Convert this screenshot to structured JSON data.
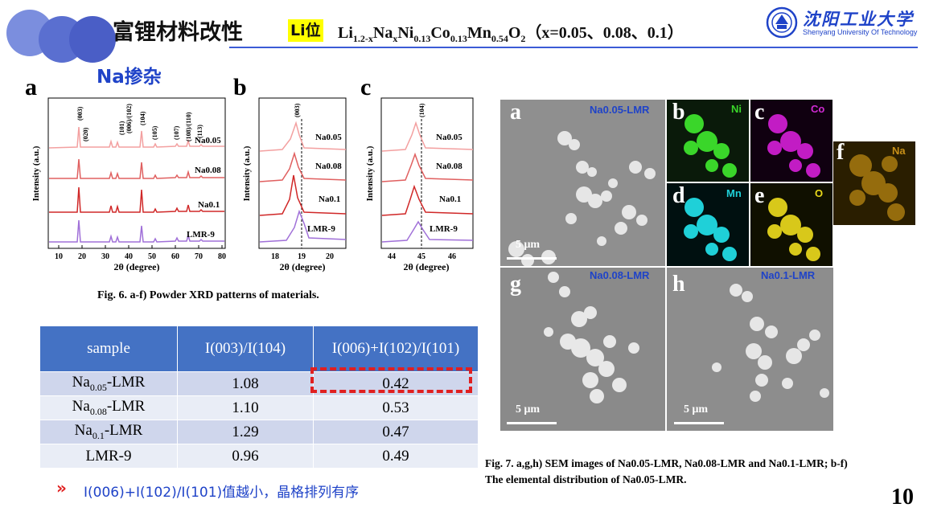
{
  "header": {
    "title_cn": "富锂材料改性",
    "li_badge": "Li位",
    "formula_parts": [
      "Li",
      "1.2-x",
      "Na",
      "x",
      "Ni",
      "0.13",
      "Co",
      "0.13",
      "Mn",
      "0.54",
      "O",
      "2"
    ],
    "formula_suffix": "（x=0.05、0.08、0.1）",
    "university_cn": "沈阳工业大学",
    "university_en": "Shenyang University Of Technology"
  },
  "section": {
    "label": "Na掺杂"
  },
  "xrd": {
    "panel_a": "a",
    "panel_b": "b",
    "panel_c": "c",
    "ylabel": "Intensity (a.u.)",
    "xlabel": "2θ (degree)",
    "a_ticks": [
      "10",
      "20",
      "30",
      "40",
      "50",
      "60",
      "70",
      "80"
    ],
    "b_ticks": [
      "18",
      "19",
      "20"
    ],
    "c_ticks": [
      "44",
      "45",
      "46"
    ],
    "peaks": [
      "(003)",
      "(020)",
      "(101)",
      "(006)/(102)",
      "(104)",
      "(105)",
      "(107)",
      "(108)/(110)",
      "(113)"
    ],
    "peak_b": "(003)",
    "peak_c": "(104)",
    "curve_labels": [
      "Na0.05",
      "Na0.08",
      "Na0.1",
      "LMR-9"
    ],
    "caption": "Fig. 6. a-f) Powder XRD patterns of materials."
  },
  "table": {
    "headers": [
      "sample",
      "I(003)/I(104)",
      "I(006)+I(102)/I(101)"
    ],
    "rows": [
      {
        "sample_base": "Na",
        "sample_sub": "0.05",
        "sample_suffix": "-LMR",
        "i1": "1.08",
        "i2": "0.42"
      },
      {
        "sample_base": "Na",
        "sample_sub": "0.08",
        "sample_suffix": "-LMR",
        "i1": "1.10",
        "i2": "0.53"
      },
      {
        "sample_base": "Na",
        "sample_sub": "0.1",
        "sample_suffix": "-LMR",
        "i1": "1.29",
        "i2": "0.47"
      },
      {
        "sample_base": "LMR-9",
        "sample_sub": "",
        "sample_suffix": "",
        "i1": "0.96",
        "i2": "0.49"
      }
    ]
  },
  "note": {
    "arrow": "»",
    "text": "I(006)+I(102)/I(101)值越小，晶格排列有序"
  },
  "sem": {
    "a_label": "Na0.05-LMR",
    "g_label": "Na0.08-LMR",
    "h_label": "Na0.1-LMR",
    "scale": "5 μm",
    "letters": [
      "a",
      "b",
      "c",
      "d",
      "e",
      "f",
      "g",
      "h"
    ],
    "elements": [
      "Ni",
      "Co",
      "Mn",
      "O",
      "Na"
    ],
    "caption_line1": "Fig. 7. a,g,h) SEM images of Na0.05-LMR, Na0.08-LMR and Na0.1-LMR; b-f)",
    "caption_line2": "The elemental distribution of Na0.05-LMR."
  },
  "page": {
    "number": "10"
  },
  "colors": {
    "accent_blue": "#1f43c8",
    "header_blue": "#4472c4",
    "red": "#e02020"
  }
}
